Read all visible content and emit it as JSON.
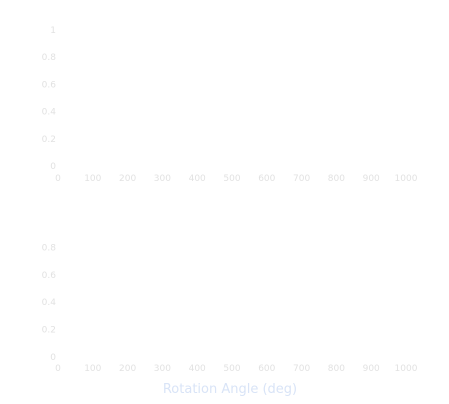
{
  "chart_data": [
    {
      "type": "line",
      "series": [],
      "xlabel": "",
      "ylabel": "",
      "xlim": [
        0,
        1000
      ],
      "ylim": [
        0,
        1
      ],
      "x_ticks": [
        "0",
        "100",
        "200",
        "300",
        "400",
        "500",
        "600",
        "700",
        "800",
        "900",
        "1000"
      ],
      "y_ticks": [
        "0",
        "0.2",
        "0.4",
        "0.6",
        "0.8",
        "1"
      ],
      "grid": false
    },
    {
      "type": "line",
      "series": [],
      "xlabel": "Rotation Angle (deg)",
      "ylabel": "",
      "xlim": [
        0,
        1000
      ],
      "ylim": [
        0,
        1
      ],
      "x_ticks": [
        "0",
        "100",
        "200",
        "300",
        "400",
        "500",
        "600",
        "700",
        "800",
        "900",
        "1000"
      ],
      "y_ticks": [
        "0",
        "0.2",
        "0.4",
        "0.6",
        "0.8",
        "1"
      ],
      "grid": false
    }
  ],
  "colors": {
    "background": "#ffffff",
    "tick_text": "#e2e2e2",
    "axis_title": "#d9e4f7"
  }
}
